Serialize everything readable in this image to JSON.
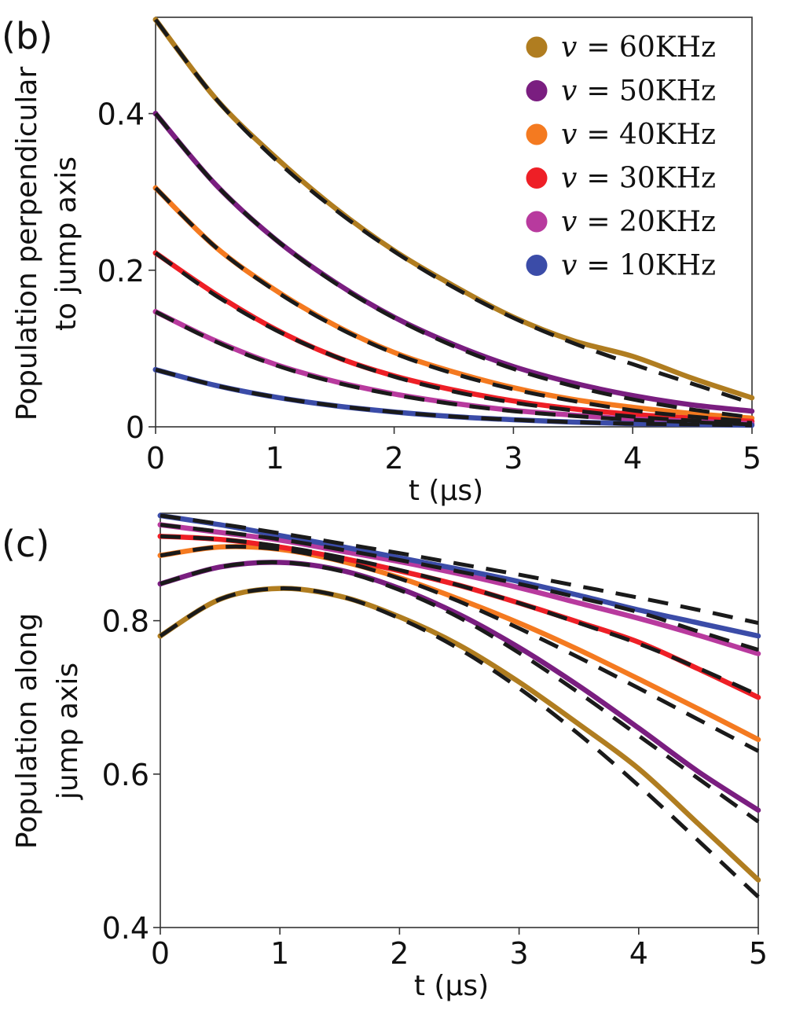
{
  "chart_data": [
    {
      "type": "line",
      "panel_label": "(b)",
      "title": "",
      "xlabel": "t (μs)",
      "ylabel_lines": [
        "Population perpendicular",
        "to jump axis"
      ],
      "xlim": [
        0,
        5
      ],
      "ylim": [
        0,
        0.523
      ],
      "xticks": [
        0,
        1,
        2,
        3,
        4,
        5
      ],
      "xtick_labels": [
        "0",
        "1",
        "2",
        "3",
        "4",
        "5"
      ],
      "yticks": [
        0,
        0.2,
        0.4
      ],
      "ytick_labels": [
        "0",
        "0.2",
        "0.4"
      ],
      "grid": false,
      "legend_position": "top-right",
      "x": [
        0,
        0.5,
        1,
        1.5,
        2,
        2.5,
        3,
        3.5,
        4,
        4.5,
        5
      ],
      "series": [
        {
          "name": "v = 60KHz",
          "freq": "60KHz",
          "color": "#B07D20",
          "values": [
            0.52,
            0.42,
            0.345,
            0.28,
            0.225,
            0.18,
            0.14,
            0.11,
            0.09,
            0.062,
            0.037
          ],
          "fit": [
            0.52,
            0.42,
            0.342,
            0.278,
            0.224,
            0.178,
            0.139,
            0.107,
            0.08,
            0.055,
            0.03
          ]
        },
        {
          "name": "v = 50KHz",
          "freq": "50KHz",
          "color": "#7A1E80",
          "values": [
            0.4,
            0.31,
            0.24,
            0.185,
            0.14,
            0.105,
            0.077,
            0.056,
            0.04,
            0.028,
            0.02
          ],
          "fit": [
            0.4,
            0.31,
            0.24,
            0.184,
            0.139,
            0.103,
            0.074,
            0.052,
            0.035,
            0.022,
            0.012
          ]
        },
        {
          "name": "v = 40KHz",
          "freq": "40KHz",
          "color": "#F47A20",
          "values": [
            0.305,
            0.23,
            0.175,
            0.13,
            0.095,
            0.07,
            0.05,
            0.035,
            0.025,
            0.017,
            0.011
          ],
          "fit": [
            0.305,
            0.23,
            0.174,
            0.129,
            0.094,
            0.068,
            0.048,
            0.033,
            0.021,
            0.013,
            0.007
          ]
        },
        {
          "name": "v = 30KHz",
          "freq": "30KHz",
          "color": "#EE1F26",
          "values": [
            0.222,
            0.17,
            0.125,
            0.09,
            0.065,
            0.047,
            0.033,
            0.023,
            0.016,
            0.011,
            0.007
          ],
          "fit": [
            0.222,
            0.168,
            0.124,
            0.09,
            0.064,
            0.045,
            0.031,
            0.021,
            0.013,
            0.008,
            0.005
          ]
        },
        {
          "name": "v = 20KHz",
          "freq": "20KHz",
          "color": "#B83A9E",
          "values": [
            0.147,
            0.11,
            0.08,
            0.058,
            0.042,
            0.03,
            0.021,
            0.015,
            0.01,
            0.007,
            0.004
          ],
          "fit": [
            0.147,
            0.109,
            0.079,
            0.057,
            0.041,
            0.029,
            0.02,
            0.014,
            0.009,
            0.006,
            0.003
          ]
        },
        {
          "name": "v = 10KHz",
          "freq": "10KHz",
          "color": "#3B4CA8",
          "values": [
            0.073,
            0.053,
            0.038,
            0.027,
            0.019,
            0.013,
            0.009,
            0.006,
            0.004,
            0.003,
            0.002
          ],
          "fit": [
            0.073,
            0.053,
            0.038,
            0.027,
            0.019,
            0.013,
            0.009,
            0.006,
            0.004,
            0.003,
            0.002
          ]
        }
      ],
      "fit_style": "black dashed"
    },
    {
      "type": "line",
      "panel_label": "(c)",
      "title": "",
      "xlabel": "t (μs)",
      "ylabel_lines": [
        "Population along",
        "jump axis"
      ],
      "xlim": [
        0,
        5
      ],
      "ylim": [
        0.4,
        0.94
      ],
      "xticks": [
        0,
        1,
        2,
        3,
        4,
        5
      ],
      "xtick_labels": [
        "0",
        "1",
        "2",
        "3",
        "4",
        "5"
      ],
      "yticks": [
        0.4,
        0.6,
        0.8
      ],
      "ytick_labels": [
        "0.4",
        "0.6",
        "0.8"
      ],
      "grid": false,
      "x": [
        0,
        0.5,
        1,
        1.5,
        2,
        2.5,
        3,
        3.5,
        4,
        4.5,
        5
      ],
      "series": [
        {
          "name": "v = 60KHz",
          "freq": "60KHz",
          "color": "#B07D20",
          "values": [
            0.78,
            0.828,
            0.842,
            0.832,
            0.805,
            0.768,
            0.72,
            0.665,
            0.607,
            0.535,
            0.462
          ],
          "fit": [
            0.78,
            0.828,
            0.842,
            0.832,
            0.803,
            0.763,
            0.712,
            0.652,
            0.585,
            0.513,
            0.44
          ]
        },
        {
          "name": "v = 50KHz",
          "freq": "50KHz",
          "color": "#7A1E80",
          "values": [
            0.848,
            0.87,
            0.876,
            0.866,
            0.842,
            0.808,
            0.765,
            0.715,
            0.66,
            0.603,
            0.553
          ],
          "fit": [
            0.848,
            0.87,
            0.876,
            0.865,
            0.84,
            0.804,
            0.758,
            0.706,
            0.65,
            0.594,
            0.538
          ]
        },
        {
          "name": "v = 40KHz",
          "freq": "40KHz",
          "color": "#F47A20",
          "values": [
            0.885,
            0.896,
            0.893,
            0.878,
            0.856,
            0.828,
            0.797,
            0.762,
            0.724,
            0.685,
            0.645
          ],
          "fit": [
            0.885,
            0.896,
            0.893,
            0.878,
            0.855,
            0.825,
            0.79,
            0.752,
            0.712,
            0.671,
            0.63
          ]
        },
        {
          "name": "v = 30KHz",
          "freq": "30KHz",
          "color": "#EE1F26",
          "values": [
            0.91,
            0.906,
            0.896,
            0.882,
            0.865,
            0.846,
            0.823,
            0.798,
            0.772,
            0.737,
            0.7
          ],
          "fit": [
            0.91,
            0.906,
            0.897,
            0.883,
            0.866,
            0.846,
            0.823,
            0.797,
            0.77,
            0.738,
            0.703
          ]
        },
        {
          "name": "v = 20KHz",
          "freq": "20KHz",
          "color": "#B83A9E",
          "values": [
            0.925,
            0.915,
            0.905,
            0.891,
            0.877,
            0.861,
            0.843,
            0.823,
            0.803,
            0.781,
            0.757
          ],
          "fit": [
            0.925,
            0.916,
            0.906,
            0.893,
            0.879,
            0.864,
            0.848,
            0.83,
            0.811,
            0.786,
            0.762
          ]
        },
        {
          "name": "v = 10KHz",
          "freq": "10KHz",
          "color": "#3B4CA8",
          "values": [
            0.937,
            0.925,
            0.911,
            0.897,
            0.882,
            0.867,
            0.851,
            0.833,
            0.814,
            0.797,
            0.78
          ],
          "fit": [
            0.937,
            0.926,
            0.914,
            0.901,
            0.888,
            0.874,
            0.86,
            0.845,
            0.83,
            0.814,
            0.797
          ]
        }
      ],
      "fit_style": "black dashed"
    }
  ],
  "legend": {
    "var": "v",
    "eq": "=",
    "entries": [
      {
        "freq": "60KHz",
        "color": "#B07D20"
      },
      {
        "freq": "50KHz",
        "color": "#7A1E80"
      },
      {
        "freq": "40KHz",
        "color": "#F47A20"
      },
      {
        "freq": "30KHz",
        "color": "#EE1F26"
      },
      {
        "freq": "20KHz",
        "color": "#B83A9E"
      },
      {
        "freq": "10KHz",
        "color": "#3B4CA8"
      }
    ]
  }
}
